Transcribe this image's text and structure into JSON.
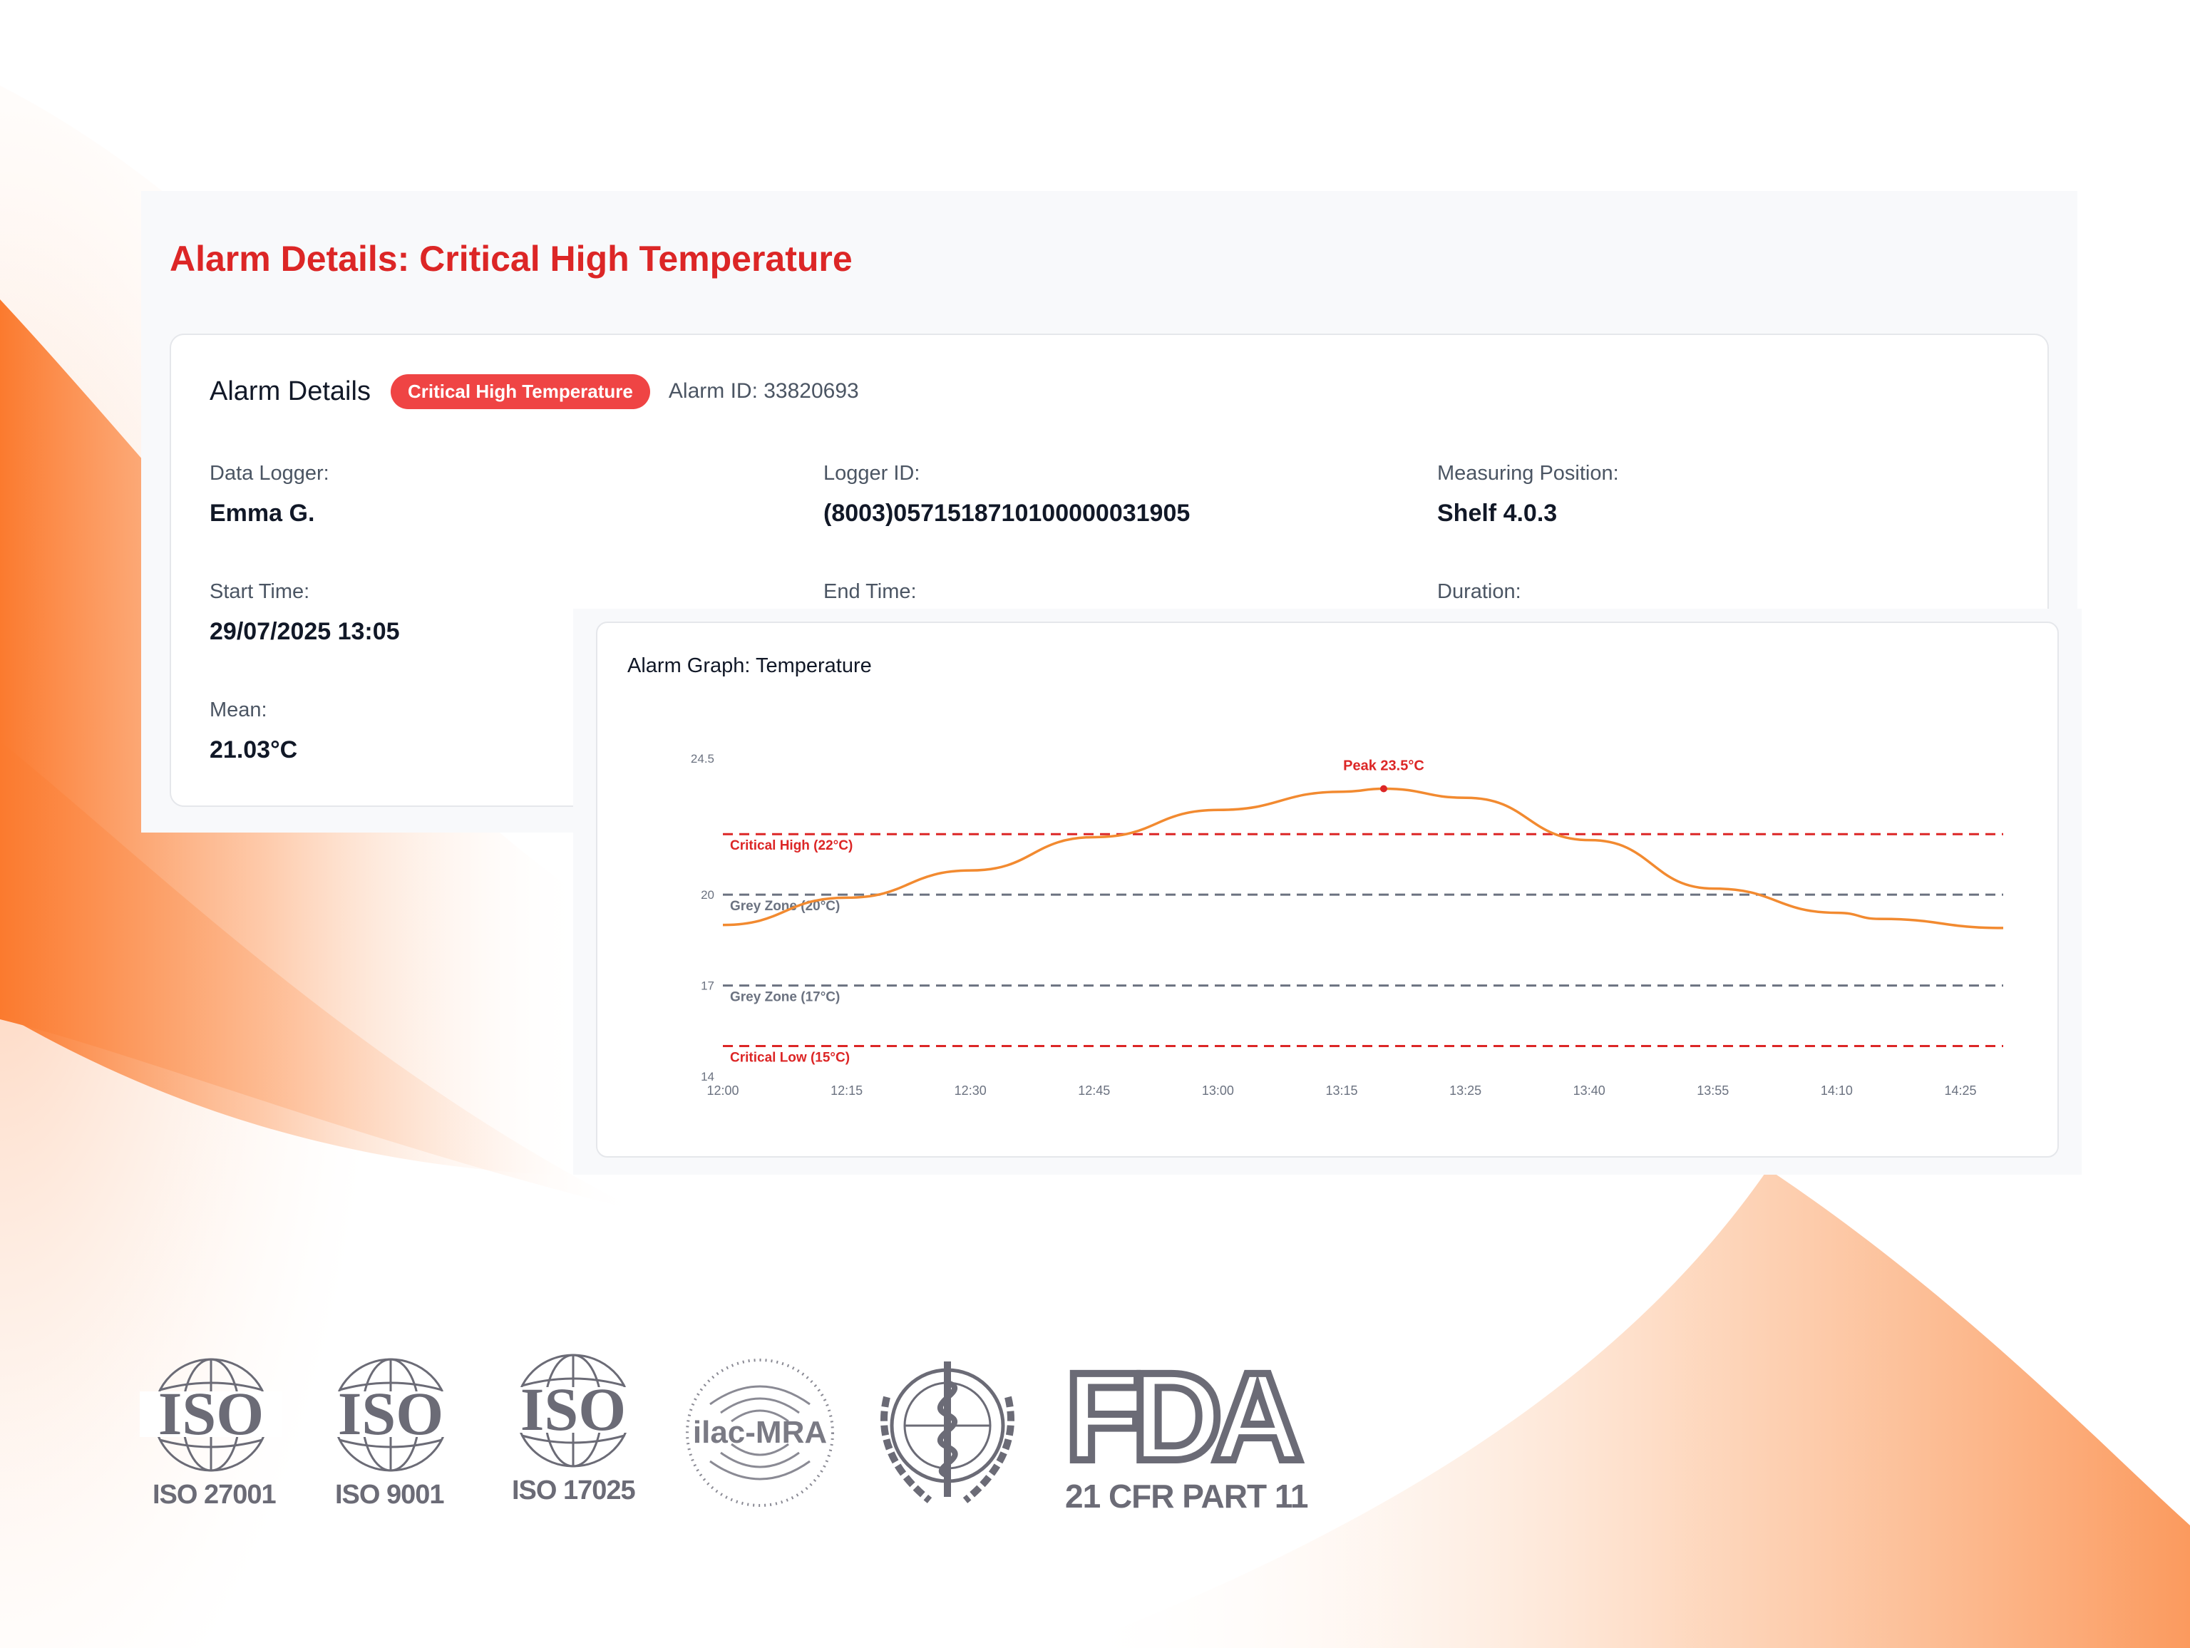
{
  "page": {
    "title": "Alarm Details: Critical High Temperature"
  },
  "alarm": {
    "heading": "Alarm Details",
    "badge": "Critical High Temperature",
    "alarm_id": "Alarm ID: 33820693",
    "fields": {
      "data_logger": {
        "label": "Data Logger:",
        "value": "Emma G."
      },
      "logger_id": {
        "label": "Logger ID:",
        "value": "(8003)0571518710100000031905"
      },
      "measuring_position": {
        "label": "Measuring Position:",
        "value": "Shelf 4.0.3"
      },
      "start_time": {
        "label": "Start Time:",
        "value": "29/07/2025 13:05"
      },
      "end_time": {
        "label": "End Time:"
      },
      "duration": {
        "label": "Duration:"
      },
      "mean": {
        "label": "Mean:",
        "value": "21.03°C"
      }
    }
  },
  "graph": {
    "title": "Alarm Graph: Temperature"
  },
  "chart_data": {
    "type": "line",
    "title": "Alarm Graph: Temperature",
    "x_ticks": [
      "12:00",
      "12:15",
      "12:30",
      "12:45",
      "13:00",
      "13:15",
      "13:25",
      "13:40",
      "13:55",
      "14:10",
      "14:25"
    ],
    "y_ticks": [
      "24.5",
      "20",
      "17",
      "14"
    ],
    "series": [
      {
        "x": [
          0,
          15,
          30,
          45,
          60,
          75,
          80,
          90,
          105,
          120,
          135,
          140,
          155
        ],
        "y": [
          19.0,
          19.9,
          20.8,
          21.9,
          22.8,
          23.4,
          23.5,
          23.2,
          21.8,
          20.2,
          19.4,
          19.2,
          18.9
        ]
      }
    ],
    "reference_lines": [
      {
        "label": "Critical High (22°C)",
        "value": 22,
        "color": "#dc2626"
      },
      {
        "label": "Grey Zone (20°C)",
        "value": 20,
        "color": "#6b7280"
      },
      {
        "label": "Grey Zone (17°C)",
        "value": 17,
        "color": "#6b7280"
      },
      {
        "label": "Critical Low (15°C)",
        "value": 15,
        "color": "#dc2626"
      }
    ],
    "annotations": [
      {
        "label": "Peak 23.5°C",
        "x": 80,
        "y": 23.5
      }
    ],
    "line_color": "#f28a30"
  },
  "certifications": [
    {
      "icon": "iso-globe-icon",
      "name": "ISO",
      "caption": "ISO 27001"
    },
    {
      "icon": "iso-globe-icon",
      "name": "ISO",
      "caption": "ISO 9001"
    },
    {
      "icon": "iso-globe-icon",
      "name": "ISO",
      "caption": "ISO 17025"
    },
    {
      "icon": "ilac-mra-icon",
      "name": "ilac-MRA"
    },
    {
      "icon": "who-emblem-icon"
    },
    {
      "icon": "fda-logo-icon",
      "name": "FDA",
      "caption": "21 CFR PART 11"
    }
  ]
}
